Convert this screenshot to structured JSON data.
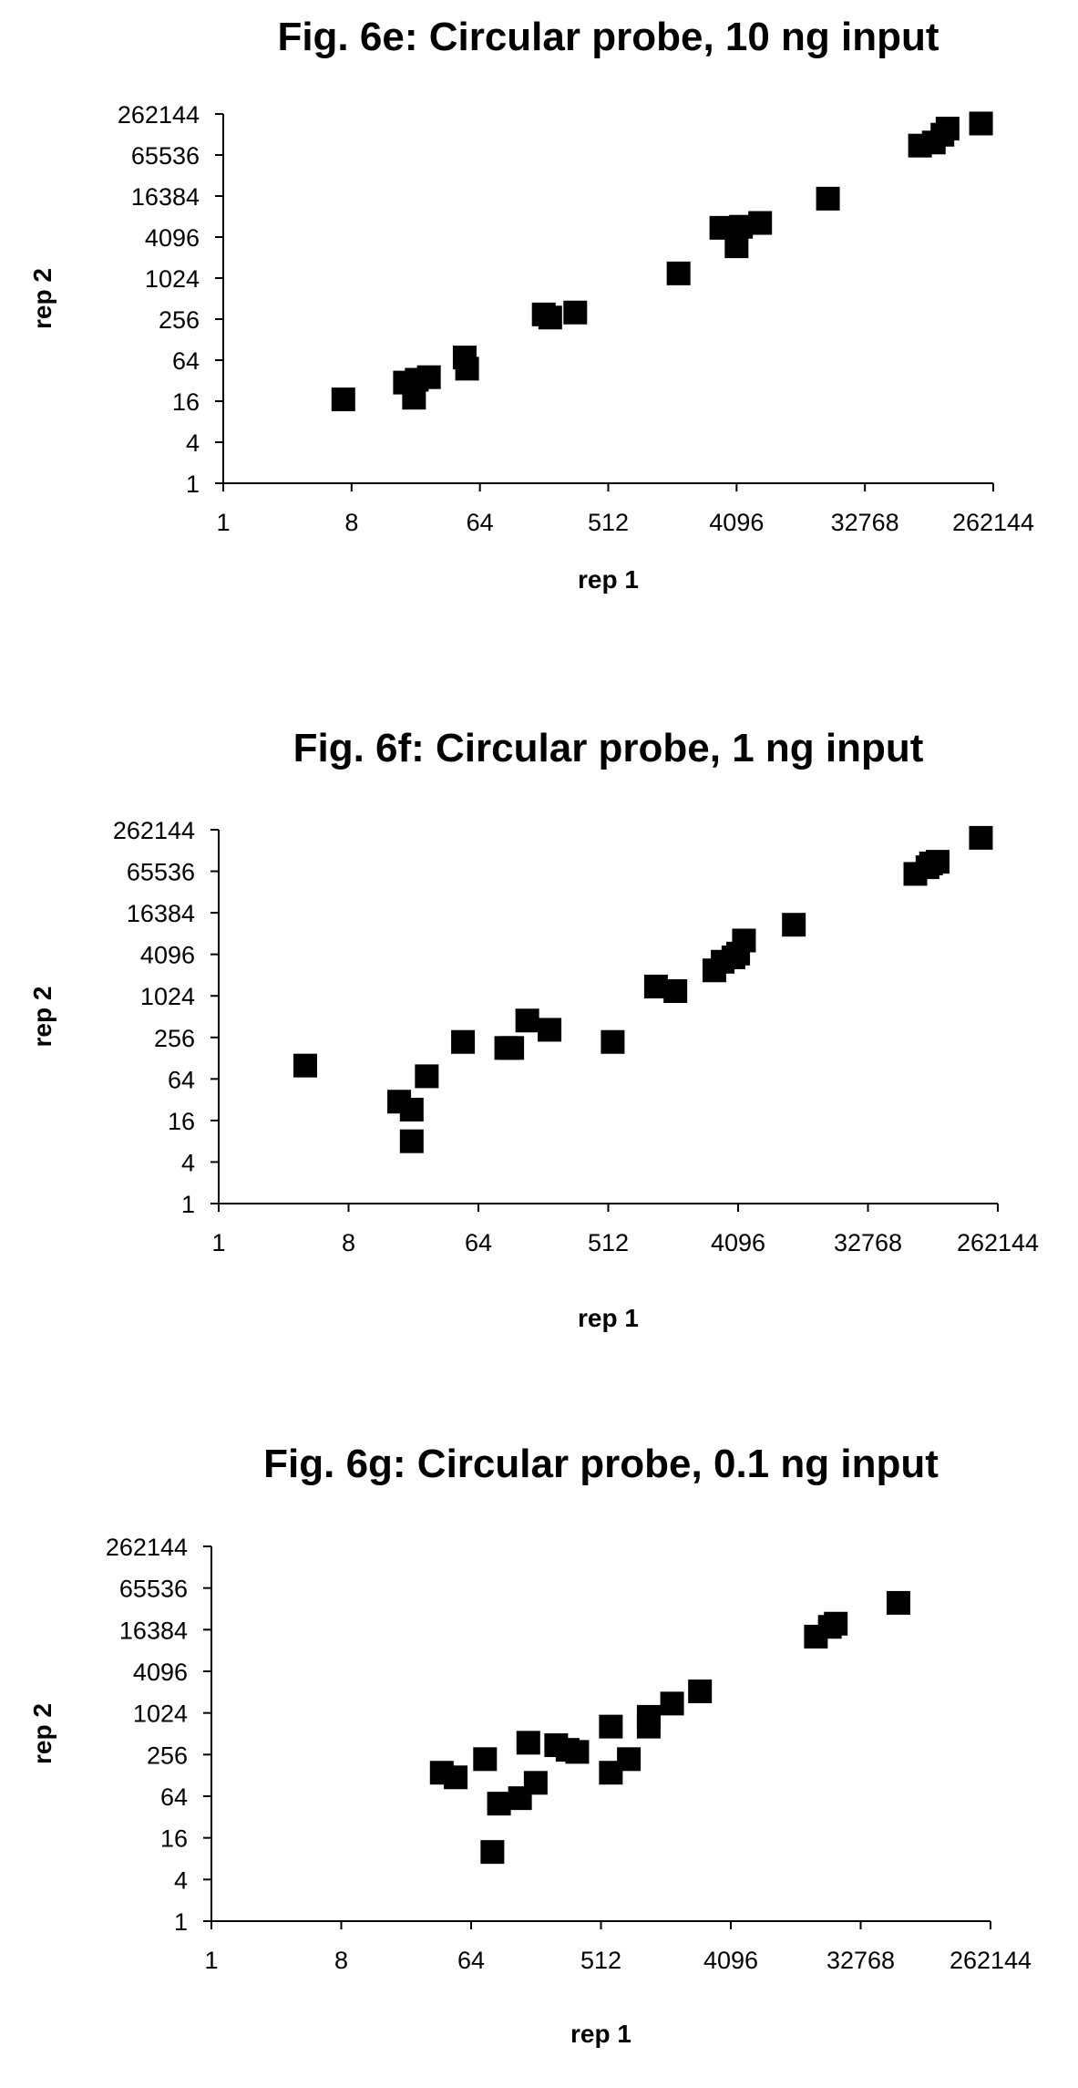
{
  "chart_data": [
    {
      "type": "scatter",
      "title": "Fig. 6e: Circular probe, 10 ng input",
      "xlabel": "rep 1",
      "ylabel": "rep 2",
      "xscale": "log2",
      "yscale": "log2",
      "xlim": [
        1,
        262144
      ],
      "ylim": [
        1,
        262144
      ],
      "xticks": [
        "1",
        "8",
        "64",
        "512",
        "4096",
        "32768",
        "262144"
      ],
      "yticks": [
        "1",
        "4",
        "16",
        "64",
        "256",
        "1024",
        "4096",
        "16384",
        "65536",
        "262144"
      ],
      "marker": "square",
      "marker_color": "#000000",
      "grid": false,
      "points": [
        {
          "x": 7,
          "y": 17
        },
        {
          "x": 19,
          "y": 30
        },
        {
          "x": 22,
          "y": 18
        },
        {
          "x": 23,
          "y": 33
        },
        {
          "x": 28,
          "y": 36
        },
        {
          "x": 50,
          "y": 70
        },
        {
          "x": 52,
          "y": 48
        },
        {
          "x": 180,
          "y": 300
        },
        {
          "x": 200,
          "y": 270
        },
        {
          "x": 300,
          "y": 320
        },
        {
          "x": 1600,
          "y": 1200
        },
        {
          "x": 3200,
          "y": 5600
        },
        {
          "x": 4096,
          "y": 3000
        },
        {
          "x": 4400,
          "y": 5800
        },
        {
          "x": 6000,
          "y": 6600
        },
        {
          "x": 18000,
          "y": 15000
        },
        {
          "x": 80000,
          "y": 90000
        },
        {
          "x": 100000,
          "y": 100000
        },
        {
          "x": 115000,
          "y": 130000
        },
        {
          "x": 125000,
          "y": 160000
        },
        {
          "x": 215000,
          "y": 190000
        }
      ]
    },
    {
      "type": "scatter",
      "title": "Fig. 6f: Circular probe, 1 ng input",
      "xlabel": "rep 1",
      "ylabel": "rep 2",
      "xscale": "log2",
      "yscale": "log2",
      "xlim": [
        1,
        262144
      ],
      "ylim": [
        1,
        262144
      ],
      "xticks": [
        "1",
        "8",
        "64",
        "512",
        "4096",
        "32768",
        "262144"
      ],
      "yticks": [
        "1",
        "4",
        "16",
        "64",
        "256",
        "1024",
        "4096",
        "16384",
        "65536",
        "262144"
      ],
      "marker": "square",
      "marker_color": "#000000",
      "grid": false,
      "points": [
        {
          "x": 4,
          "y": 100
        },
        {
          "x": 18,
          "y": 30
        },
        {
          "x": 22,
          "y": 23
        },
        {
          "x": 22,
          "y": 8
        },
        {
          "x": 28,
          "y": 70
        },
        {
          "x": 50,
          "y": 220
        },
        {
          "x": 100,
          "y": 180
        },
        {
          "x": 110,
          "y": 180
        },
        {
          "x": 140,
          "y": 450
        },
        {
          "x": 200,
          "y": 330
        },
        {
          "x": 550,
          "y": 220
        },
        {
          "x": 1100,
          "y": 1400
        },
        {
          "x": 1500,
          "y": 1200
        },
        {
          "x": 2800,
          "y": 2400
        },
        {
          "x": 3200,
          "y": 3200
        },
        {
          "x": 3800,
          "y": 3700
        },
        {
          "x": 4100,
          "y": 4200
        },
        {
          "x": 4500,
          "y": 6500
        },
        {
          "x": 10000,
          "y": 11000
        },
        {
          "x": 70000,
          "y": 60000
        },
        {
          "x": 85000,
          "y": 75000
        },
        {
          "x": 90000,
          "y": 85000
        },
        {
          "x": 100000,
          "y": 90000
        },
        {
          "x": 200000,
          "y": 200000
        }
      ]
    },
    {
      "type": "scatter",
      "title": "Fig. 6g: Circular probe, 0.1 ng input",
      "xlabel": "rep 1",
      "ylabel": "rep 2",
      "xscale": "log2",
      "yscale": "log2",
      "xlim": [
        1,
        262144
      ],
      "ylim": [
        1,
        262144
      ],
      "xticks": [
        "1",
        "8",
        "64",
        "512",
        "4096",
        "32768",
        "262144"
      ],
      "yticks": [
        "1",
        "4",
        "16",
        "64",
        "256",
        "1024",
        "4096",
        "16384",
        "65536",
        "262144"
      ],
      "marker": "square",
      "marker_color": "#000000",
      "grid": false,
      "points": [
        {
          "x": 40,
          "y": 140
        },
        {
          "x": 50,
          "y": 120
        },
        {
          "x": 80,
          "y": 220
        },
        {
          "x": 100,
          "y": 50
        },
        {
          "x": 90,
          "y": 10
        },
        {
          "x": 140,
          "y": 60
        },
        {
          "x": 160,
          "y": 380
        },
        {
          "x": 180,
          "y": 100
        },
        {
          "x": 250,
          "y": 350
        },
        {
          "x": 300,
          "y": 300
        },
        {
          "x": 350,
          "y": 280
        },
        {
          "x": 600,
          "y": 650
        },
        {
          "x": 600,
          "y": 140
        },
        {
          "x": 800,
          "y": 220
        },
        {
          "x": 1100,
          "y": 900
        },
        {
          "x": 1100,
          "y": 650
        },
        {
          "x": 1600,
          "y": 1400
        },
        {
          "x": 2500,
          "y": 2100
        },
        {
          "x": 16000,
          "y": 13000
        },
        {
          "x": 20000,
          "y": 18000
        },
        {
          "x": 22000,
          "y": 20000
        },
        {
          "x": 60000,
          "y": 40000
        }
      ]
    }
  ]
}
